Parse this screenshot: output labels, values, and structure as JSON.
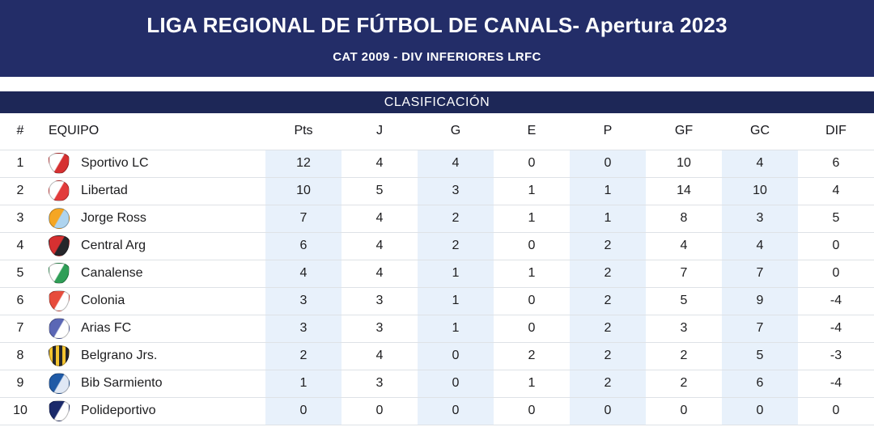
{
  "banner": {
    "title": "LIGA REGIONAL DE FÚTBOL DE CANALS- Apertura 2023",
    "subtitle": "CAT 2009 - DIV INFERIORES LRFC"
  },
  "section": {
    "title": "CLASIFICACIÓN"
  },
  "colors": {
    "banner_navy": "#232d68",
    "section_navy": "#1d2757",
    "column_shade": "#e8f1fb",
    "row_border": "#dee2e6",
    "text": "#1d1d1f"
  },
  "table": {
    "columns": [
      "#",
      "EQUIPO",
      "Pts",
      "J",
      "G",
      "E",
      "P",
      "GF",
      "GC",
      "DIF"
    ],
    "rows": [
      {
        "pos": 1,
        "team": "Sportivo LC",
        "logo": {
          "shape": "shield",
          "c1": "#ffffff",
          "c2": "#d63031"
        },
        "stats": [
          12,
          4,
          4,
          0,
          0,
          10,
          4,
          6
        ]
      },
      {
        "pos": 2,
        "team": "Libertad",
        "logo": {
          "shape": "circle",
          "c1": "#ffffff",
          "c2": "#e23b3b"
        },
        "stats": [
          10,
          5,
          3,
          1,
          1,
          14,
          10,
          4
        ]
      },
      {
        "pos": 3,
        "team": "Jorge Ross",
        "logo": {
          "shape": "circle",
          "c1": "#f5a623",
          "c2": "#aed4ef"
        },
        "stats": [
          7,
          4,
          2,
          1,
          1,
          8,
          3,
          5
        ]
      },
      {
        "pos": 4,
        "team": "Central Arg",
        "logo": {
          "shape": "shield",
          "c1": "#d63031",
          "c2": "#26262b"
        },
        "stats": [
          6,
          4,
          2,
          0,
          2,
          4,
          4,
          0
        ]
      },
      {
        "pos": 5,
        "team": "Canalense",
        "logo": {
          "shape": "shield",
          "c1": "#ffffff",
          "c2": "#2f9e57"
        },
        "stats": [
          4,
          4,
          1,
          1,
          2,
          7,
          7,
          0
        ]
      },
      {
        "pos": 6,
        "team": "Colonia",
        "logo": {
          "shape": "shield",
          "c1": "#e74c3c",
          "c2": "#ffffff"
        },
        "stats": [
          3,
          3,
          1,
          0,
          2,
          5,
          9,
          -4
        ]
      },
      {
        "pos": 7,
        "team": "Arias FC",
        "logo": {
          "shape": "circle",
          "c1": "#5b67b5",
          "c2": "#ffffff"
        },
        "stats": [
          3,
          3,
          1,
          0,
          2,
          3,
          7,
          -4
        ]
      },
      {
        "pos": 8,
        "team": "Belgrano Jrs.",
        "logo": {
          "shape": "shield-stripes",
          "c1": "#f4c430",
          "c2": "#26262b"
        },
        "stats": [
          2,
          4,
          0,
          2,
          2,
          2,
          5,
          -3
        ]
      },
      {
        "pos": 9,
        "team": "Bib Sarmiento",
        "logo": {
          "shape": "circle",
          "c1": "#1f5aa6",
          "c2": "#dfe8f5"
        },
        "stats": [
          1,
          3,
          0,
          1,
          2,
          2,
          6,
          -4
        ]
      },
      {
        "pos": 10,
        "team": "Polideportivo",
        "logo": {
          "shape": "shield",
          "c1": "#1b2a6b",
          "c2": "#ffffff"
        },
        "stats": [
          0,
          0,
          0,
          0,
          0,
          0,
          0,
          0
        ]
      }
    ]
  }
}
